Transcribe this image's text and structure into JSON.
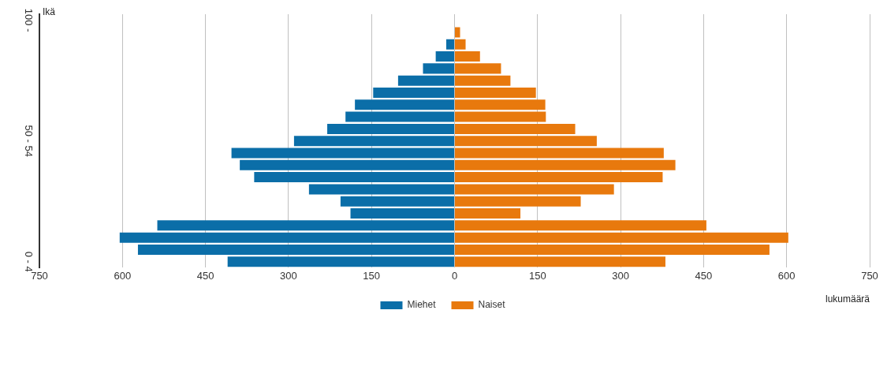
{
  "chart_data": {
    "type": "bar",
    "orientation": "horizontal",
    "stacked": true,
    "ylabel": "Ikä",
    "xlabel": "lukumäärä",
    "categories": [
      "100 -",
      null,
      null,
      null,
      null,
      null,
      null,
      null,
      null,
      null,
      "50 - 54",
      null,
      null,
      null,
      null,
      null,
      null,
      null,
      null,
      null,
      "0 - 4"
    ],
    "series": [
      {
        "name": "Miehet",
        "color": "#0b6ea8",
        "values": [
          0,
          0,
          -15,
          -34,
          -57,
          -102,
          -147,
          -180,
          -197,
          -230,
          -290,
          -403,
          -388,
          -362,
          -263,
          -206,
          -188,
          -537,
          -605,
          -572,
          -410
        ]
      },
      {
        "name": "Naiset",
        "color": "#e8790d",
        "values": [
          0,
          10,
          20,
          46,
          84,
          101,
          147,
          164,
          165,
          218,
          257,
          378,
          399,
          376,
          288,
          228,
          119,
          455,
          603,
          569,
          381
        ]
      }
    ],
    "xlim": [
      -750,
      750
    ],
    "xticks": [
      {
        "value": -750,
        "label": "750"
      },
      {
        "value": -600,
        "label": "600"
      },
      {
        "value": -450,
        "label": "450"
      },
      {
        "value": -300,
        "label": "300"
      },
      {
        "value": -150,
        "label": "150"
      },
      0,
      150,
      300,
      450,
      600,
      750
    ],
    "grid": "x",
    "legend": "bottom"
  }
}
